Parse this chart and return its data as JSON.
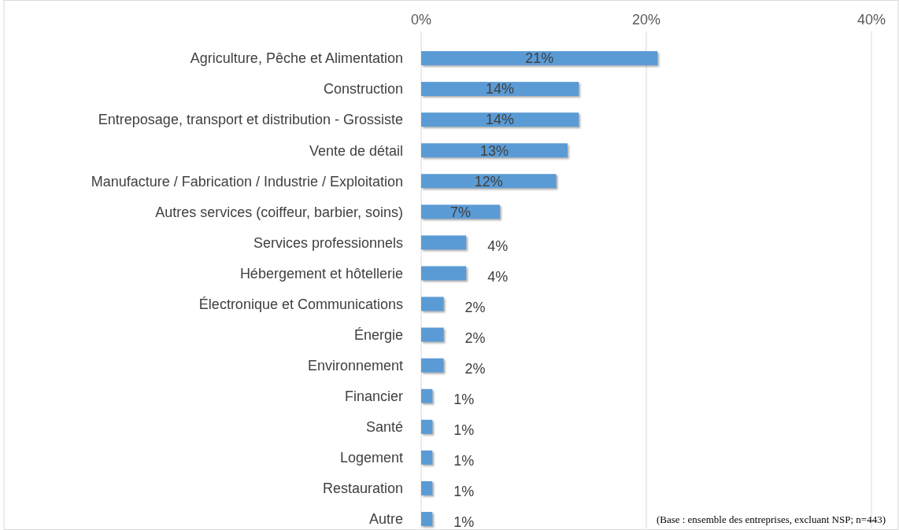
{
  "chart_data": {
    "type": "bar",
    "orientation": "horizontal",
    "categories": [
      "Agriculture, Pêche et Alimentation",
      "Construction",
      "Entreposage, transport et distribution - Grossiste",
      "Vente de détail",
      "Manufacture / Fabrication / Industrie / Exploitation",
      "Autres services (coiffeur, barbier, soins)",
      "Services professionnels",
      "Hébergement et hôtellerie",
      "Électronique et Communications",
      "Énergie",
      "Environnement",
      "Financier",
      "Santé",
      "Logement",
      "Restauration",
      "Autre"
    ],
    "values": [
      21,
      14,
      14,
      13,
      12,
      7,
      4,
      4,
      2,
      2,
      2,
      1,
      1,
      1,
      1,
      1
    ],
    "color": "#5b9bd5",
    "xlim": [
      0,
      40
    ],
    "xticks": [
      {
        "value": 0,
        "label": "0%"
      },
      {
        "value": 20,
        "label": "20%"
      },
      {
        "value": 40,
        "label": "40%"
      }
    ],
    "grid": "x",
    "value_labels": [
      "21%",
      "14%",
      "14%",
      "13%",
      "12%",
      "7%",
      "4%",
      "4%",
      "2%",
      "2%",
      "2%",
      "1%",
      "1%",
      "1%",
      "1%",
      "1%"
    ],
    "annotations": [
      "(Base : ensemble des entreprises, excluant NSP; n=443)"
    ]
  }
}
